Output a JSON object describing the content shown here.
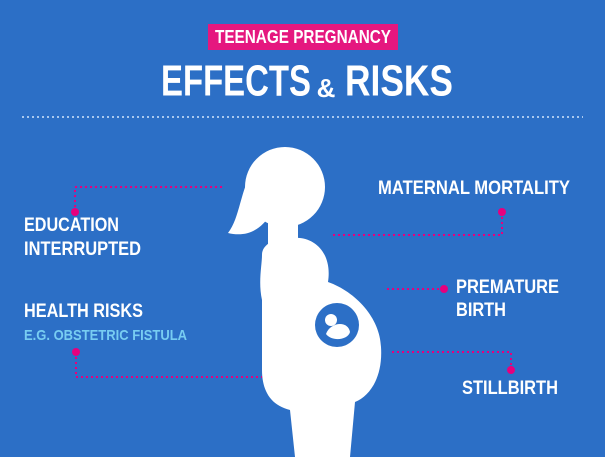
{
  "header": {
    "tag": "TEENAGE PREGNANCY",
    "title": [
      "EFFECTS",
      "&",
      "RISKS"
    ]
  },
  "effects": {
    "education": [
      "EDUCATION",
      "INTERRUPTED"
    ],
    "maternal": [
      "MATERNAL MORTALITY"
    ],
    "premature": [
      "PREMATURE",
      "BIRTH"
    ],
    "health": [
      "HEALTH RISKS"
    ],
    "health_example": "E.G. OBSTETRIC FISTULA",
    "stillbirth": [
      "STILLBIRTH"
    ]
  }
}
